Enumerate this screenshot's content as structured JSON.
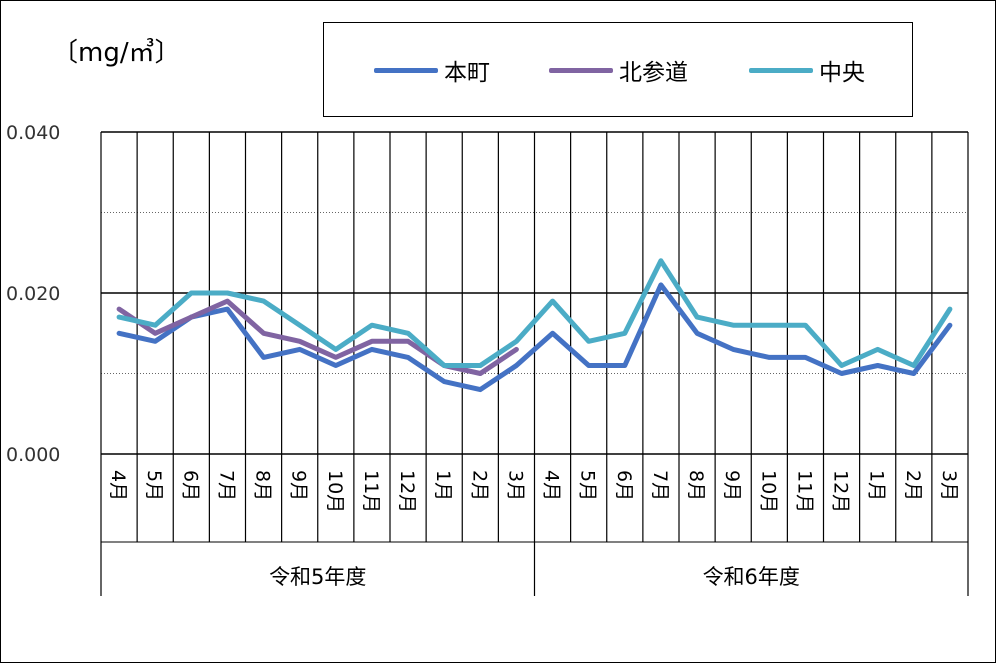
{
  "unit_label": "〔mg/㎥〕",
  "chart_data": {
    "type": "line",
    "ylim": [
      0,
      0.04
    ],
    "yticks": [
      "0.000",
      "0.020",
      "0.040"
    ],
    "grid": true,
    "legend_position": "top",
    "categories": [
      "4月",
      "5月",
      "6月",
      "7月",
      "8月",
      "9月",
      "10月",
      "11月",
      "12月",
      "1月",
      "2月",
      "3月",
      "4月",
      "5月",
      "6月",
      "7月",
      "8月",
      "9月",
      "10月",
      "11月",
      "12月",
      "1月",
      "2月",
      "3月"
    ],
    "groups": [
      {
        "label": "令和5年度",
        "count": 12
      },
      {
        "label": "令和6年度",
        "count": 12
      }
    ],
    "series": [
      {
        "name": "本町",
        "color": "#4472C4",
        "values": [
          0.015,
          0.014,
          0.017,
          0.018,
          0.012,
          0.013,
          0.011,
          0.013,
          0.012,
          0.009,
          0.008,
          0.011,
          0.015,
          0.011,
          0.011,
          0.021,
          0.015,
          0.013,
          0.012,
          0.012,
          0.01,
          0.011,
          0.01,
          0.016
        ]
      },
      {
        "name": "北参道",
        "color": "#8064A2",
        "values": [
          0.018,
          0.015,
          0.017,
          0.019,
          0.015,
          0.014,
          0.012,
          0.014,
          0.014,
          0.011,
          0.01,
          0.013,
          null,
          null,
          null,
          null,
          null,
          null,
          null,
          null,
          null,
          null,
          null,
          null
        ]
      },
      {
        "name": "中央",
        "color": "#4BACC6",
        "values": [
          0.017,
          0.016,
          0.02,
          0.02,
          0.019,
          0.016,
          0.013,
          0.016,
          0.015,
          0.011,
          0.011,
          0.014,
          0.019,
          0.014,
          0.015,
          0.024,
          0.017,
          0.016,
          0.016,
          0.016,
          0.011,
          0.013,
          0.011,
          0.018
        ]
      }
    ]
  }
}
